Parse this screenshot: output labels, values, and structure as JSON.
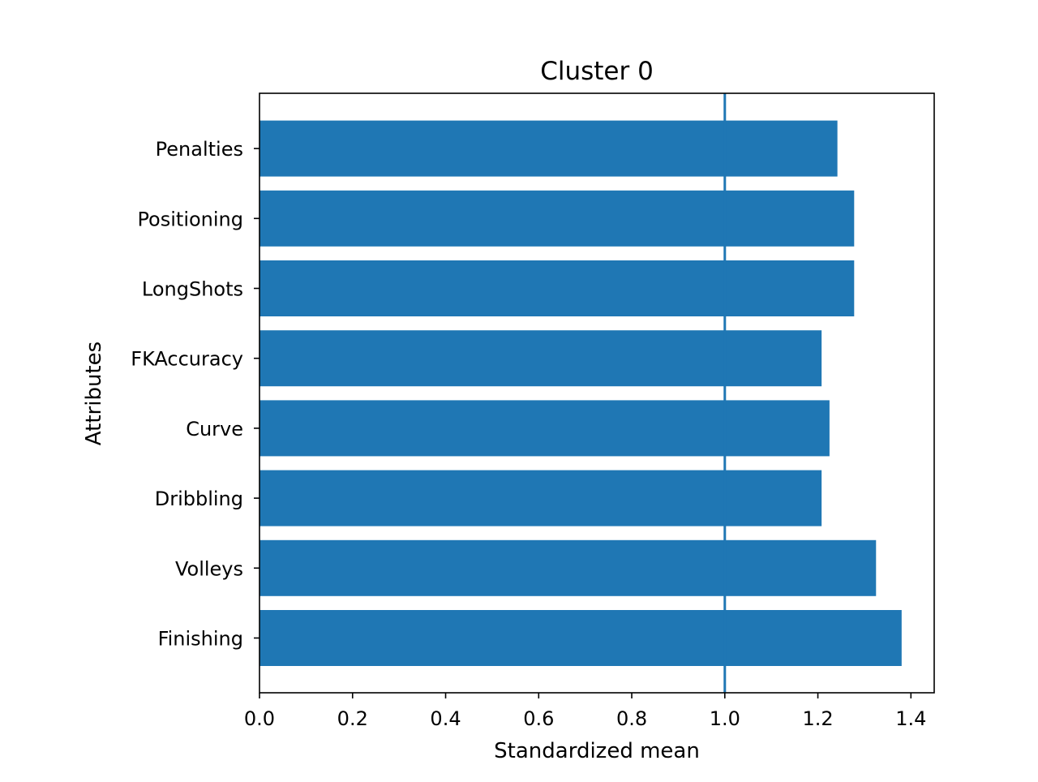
{
  "chart_data": {
    "type": "bar",
    "orientation": "horizontal",
    "title": "Cluster 0",
    "xlabel": "Standardized mean",
    "ylabel": "Attributes",
    "xlim": [
      0,
      1.45
    ],
    "xticks": [
      0.0,
      0.2,
      0.4,
      0.6,
      0.8,
      1.0,
      1.2,
      1.4
    ],
    "xtick_labels": [
      "0.0",
      "0.2",
      "0.4",
      "0.6",
      "0.8",
      "1.0",
      "1.2",
      "1.4"
    ],
    "categories": [
      "Finishing",
      "Volleys",
      "Dribbling",
      "Curve",
      "FKAccuracy",
      "LongShots",
      "Positioning",
      "Penalties"
    ],
    "values": [
      1.38,
      1.325,
      1.208,
      1.225,
      1.208,
      1.278,
      1.278,
      1.242
    ],
    "reference_line": {
      "x": 1.0,
      "color": "#1f77b4"
    },
    "bar_color": "#1f77b4",
    "grid": false,
    "legend": "none"
  }
}
